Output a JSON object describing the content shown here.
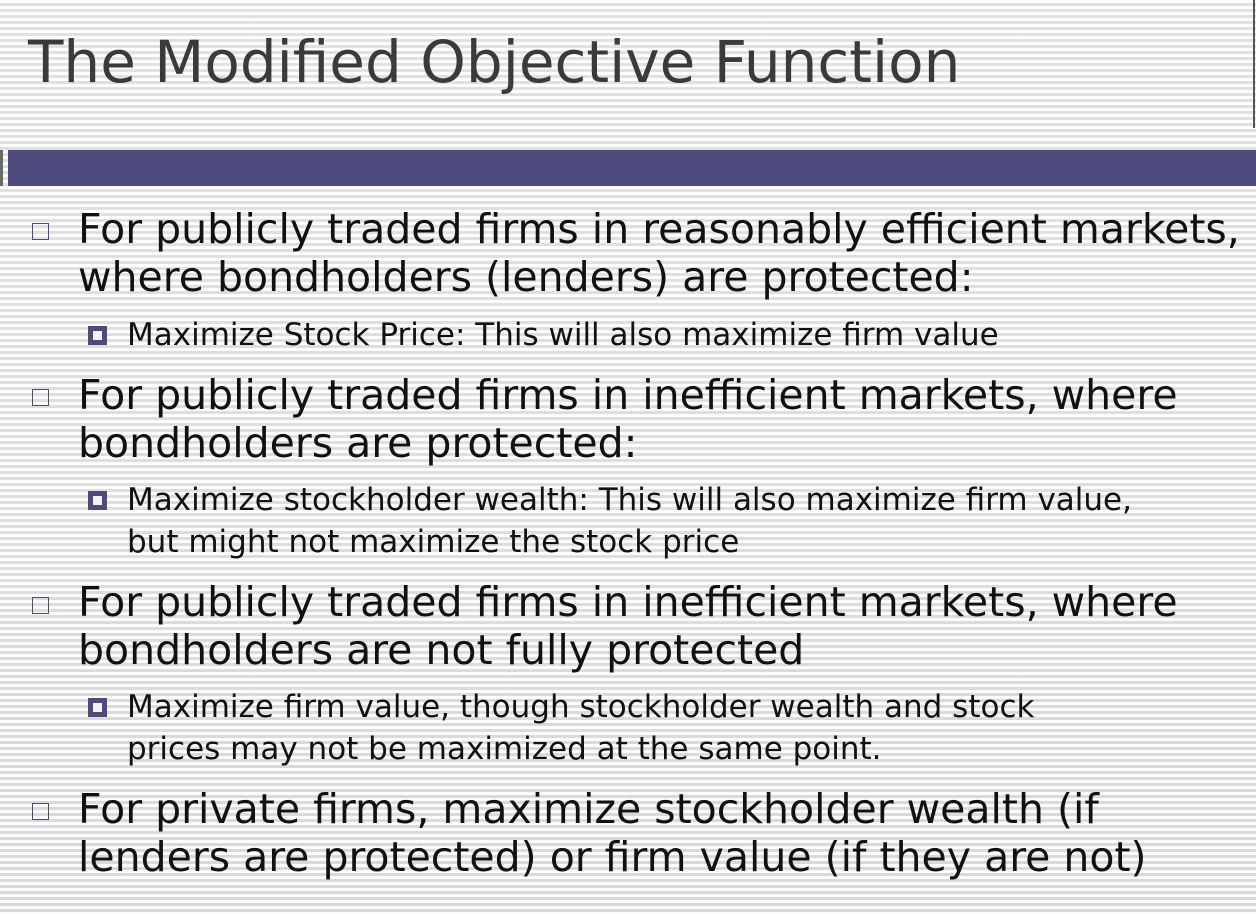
{
  "slide": {
    "title": "The Modified Objective Function",
    "accent_color": "#4d4a7d",
    "bullets": [
      {
        "lines": [
          "For publicly traded firms in reasonably efficient markets,",
          "where bondholders (lenders) are protected:"
        ],
        "sub": {
          "lines": [
            "Maximize Stock Price: This will also maximize firm value"
          ]
        }
      },
      {
        "lines": [
          "For publicly traded firms in inefficient markets, where",
          "bondholders are protected:"
        ],
        "sub": {
          "lines": [
            "Maximize stockholder wealth: This will also maximize firm value,",
            "but might not maximize the stock price"
          ]
        }
      },
      {
        "lines": [
          "For publicly traded firms in inefficient markets, where",
          "bondholders are not fully protected"
        ],
        "sub": {
          "lines": [
            "Maximize firm value, though stockholder wealth and stock",
            "prices may not be maximized at the same point."
          ]
        }
      },
      {
        "lines": [
          "For private firms, maximize stockholder wealth (if",
          "lenders are protected) or firm value (if they are not)"
        ]
      }
    ]
  }
}
